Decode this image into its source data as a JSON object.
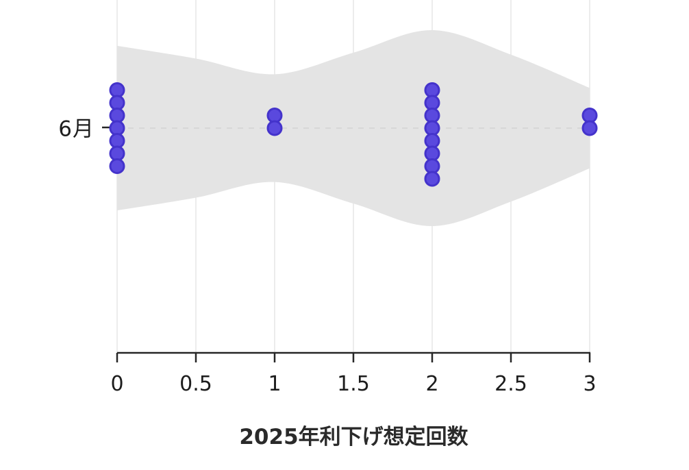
{
  "chart_data": {
    "type": "scatter",
    "subtype": "violin-with-stacked-dot-strip",
    "title": "",
    "xlabel": "2025年利下げ想定回数",
    "ylabel": "",
    "y_category": "6月",
    "x_ticks": [
      "0",
      "0.5",
      "1",
      "1.5",
      "2",
      "2.5",
      "3"
    ],
    "x_tick_values": [
      0,
      0.5,
      1,
      1.5,
      2,
      2.5,
      3
    ],
    "x_range": [
      0,
      3
    ],
    "grid": "vertical-only",
    "legend": "none",
    "dot_counts": {
      "0": 7,
      "1": 2,
      "2": 8,
      "3": 2
    },
    "dot_stacks": [
      {
        "x": 0,
        "offsets": [
          -3,
          -2,
          -1,
          0,
          1,
          2,
          3
        ]
      },
      {
        "x": 1,
        "offsets": [
          -1,
          0
        ]
      },
      {
        "x": 2,
        "offsets": [
          -3,
          -2,
          -1,
          0,
          1,
          2,
          3,
          4
        ]
      },
      {
        "x": 3,
        "offsets": [
          -1,
          0
        ]
      }
    ],
    "violin": {
      "x": [
        0,
        0.5,
        1,
        1.5,
        2,
        2.5,
        3
      ],
      "density": [
        0.84,
        0.71,
        0.55,
        0.77,
        1.0,
        0.75,
        0.41
      ],
      "truncated_ends": true
    },
    "colors": {
      "dot_fill": "#5a49de",
      "dot_stroke": "#4433cb",
      "violin_fill": "#e4e4e4",
      "gridline": "#ececec",
      "center_dash": "#d7d7d7",
      "axis": "#262626",
      "text": "#1d1d1d"
    }
  }
}
